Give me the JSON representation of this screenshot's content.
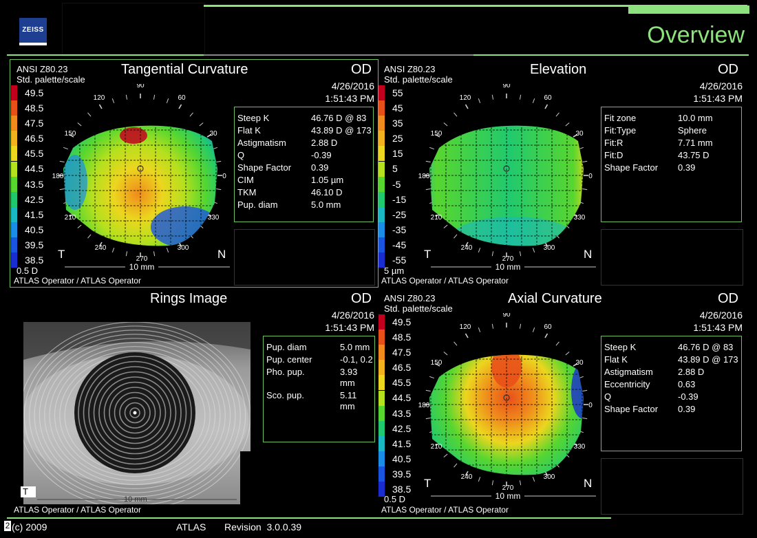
{
  "header": {
    "logo_text": "ZEISS",
    "title": "Overview"
  },
  "footer": {
    "copyright": "(c) 2009",
    "page_num": "2",
    "app": "ATLAS",
    "revision": "Revision  3.0.0.39"
  },
  "operator": "ATLAS Operator / ATLAS Operator",
  "eye": "OD",
  "date": "4/26/2016",
  "time": "1:51:43 PM",
  "scale_std": "ANSI Z80.23",
  "scale_palette": "Std. palette/scale",
  "axis_labels": {
    "a90": "90",
    "a120": "120",
    "a60": "60",
    "a150": "150",
    "a30": "30",
    "a180": "180",
    "a0": "0",
    "a210": "210",
    "a330": "330",
    "a240": "240",
    "a300": "300",
    "a270": "270",
    "T": "T",
    "N": "N",
    "dim": "10 mm"
  },
  "tangential": {
    "title": "Tangential Curvature",
    "scale": [
      "49.5",
      "48.5",
      "47.5",
      "46.5",
      "45.5",
      "44.5",
      "43.5",
      "42.5",
      "41.5",
      "40.5",
      "39.5",
      "38.5"
    ],
    "scale_unit": "0.5 D",
    "info": [
      {
        "k": "Steep K",
        "v": "46.76 D @ 83"
      },
      {
        "k": "Flat K",
        "v": "43.89 D @ 173"
      },
      {
        "k": "Astigmatism",
        "v": "2.88 D"
      },
      {
        "k": "Q",
        "v": "-0.39"
      },
      {
        "k": "Shape Factor",
        "v": "0.39"
      },
      {
        "k": "CIM",
        "v": "1.05 µm"
      },
      {
        "k": "TKM",
        "v": "46.10 D"
      },
      {
        "k": "Pup. diam",
        "v": "5.0 mm"
      }
    ]
  },
  "elevation": {
    "title": "Elevation",
    "scale": [
      "55",
      "45",
      "35",
      "25",
      "15",
      "5",
      "-5",
      "-15",
      "-25",
      "-35",
      "-45",
      "-55"
    ],
    "scale_unit": "5 µm",
    "info": [
      {
        "k": "Fit zone",
        "v": "10.0 mm"
      },
      {
        "k": "Fit:Type",
        "v": "Sphere"
      },
      {
        "k": "Fit:R",
        "v": "7.71 mm"
      },
      {
        "k": "Fit:D",
        "v": "43.75 D"
      },
      {
        "k": "Shape Factor",
        "v": "0.39"
      }
    ]
  },
  "rings": {
    "title": "Rings Image",
    "info": [
      {
        "k": "Pup. diam",
        "v": "5.0 mm"
      },
      {
        "k": "Pup. center",
        "v": "-0.1, 0.2"
      },
      {
        "k": "Pho. pup.",
        "v": "3.93 mm"
      },
      {
        "k": "Sco. pup.",
        "v": "5.11 mm"
      }
    ],
    "T": "T",
    "dim": "10 mm"
  },
  "axial": {
    "title": "Axial Curvature",
    "scale": [
      "49.5",
      "48.5",
      "47.5",
      "46.5",
      "45.5",
      "44.5",
      "43.5",
      "42.5",
      "41.5",
      "40.5",
      "39.5",
      "38.5"
    ],
    "scale_unit": "0.5 D",
    "info": [
      {
        "k": "Steep K",
        "v": "46.76 D @ 83"
      },
      {
        "k": "Flat K",
        "v": "43.89 D @ 173"
      },
      {
        "k": "Astigmatism",
        "v": "2.88 D"
      },
      {
        "k": "Eccentricity",
        "v": "0.63"
      },
      {
        "k": "Q",
        "v": "-0.39"
      },
      {
        "k": "Shape Factor",
        "v": "0.39"
      }
    ]
  },
  "palette": [
    "#c2001e",
    "#e8501a",
    "#f08a1c",
    "#f2b21e",
    "#ecd61e",
    "#b4e01e",
    "#58d630",
    "#21c96e",
    "#1ab7c4",
    "#1a8ee6",
    "#1a55e0",
    "#1a2dd0"
  ]
}
